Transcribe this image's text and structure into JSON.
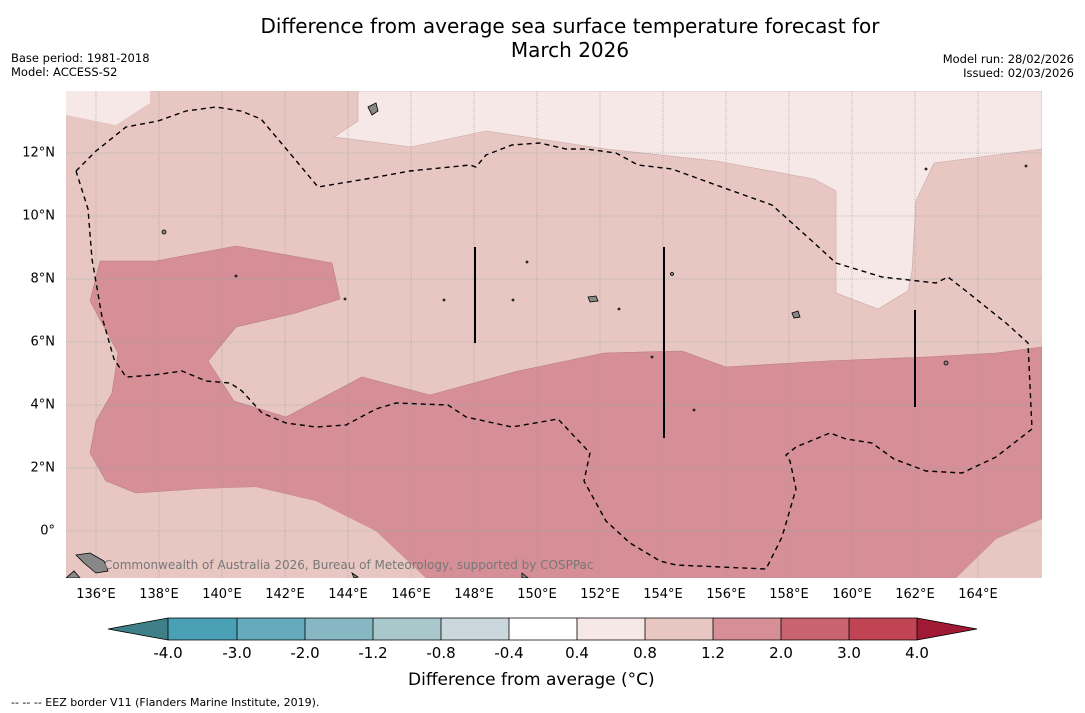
{
  "title": {
    "line1": "Difference from average sea surface temperature forecast for",
    "line2": "March 2026"
  },
  "meta": {
    "base_period": "Base period: 1981-2018",
    "model": "Model: ACCESS-S2",
    "model_run": "Model run: 28/02/2026",
    "issued": "Issued: 02/03/2026"
  },
  "map": {
    "credit": "Commonwealth of Australia 2026, Bureau of Meteorology, supported by COSPPac",
    "lon_ticks": [
      "136°E",
      "138°E",
      "140°E",
      "142°E",
      "144°E",
      "146°E",
      "148°E",
      "150°E",
      "152°E",
      "154°E",
      "156°E",
      "158°E",
      "160°E",
      "162°E",
      "164°E"
    ],
    "lat_ticks": [
      "12°N",
      "10°N",
      "8°N",
      "6°N",
      "4°N",
      "2°N",
      "0°"
    ],
    "colors": {
      "0.4-0.8": "#f5e8e6",
      "0.8-1.2": "#e8c7c3",
      "1.2-2.0": "#d68f96"
    }
  },
  "colorbar": {
    "title": "Difference from average (°C)",
    "labels": [
      "-4.0",
      "-3.0",
      "-2.0",
      "-1.2",
      "-0.8",
      "-0.4",
      "0.4",
      "0.8",
      "1.2",
      "2.0",
      "3.0",
      "4.0"
    ],
    "colors": [
      "#3f7f87",
      "#4aa0b4",
      "#65aabd",
      "#87b7c3",
      "#a9c8cc",
      "#cad7dd",
      "#ffffff",
      "#f5e8e6",
      "#e8c7c3",
      "#d68f96",
      "#c9636d",
      "#c04453",
      "#a11a35"
    ]
  },
  "footnote": "--  --  -- EEZ border V11 (Flanders Marine Institute, 2019)."
}
